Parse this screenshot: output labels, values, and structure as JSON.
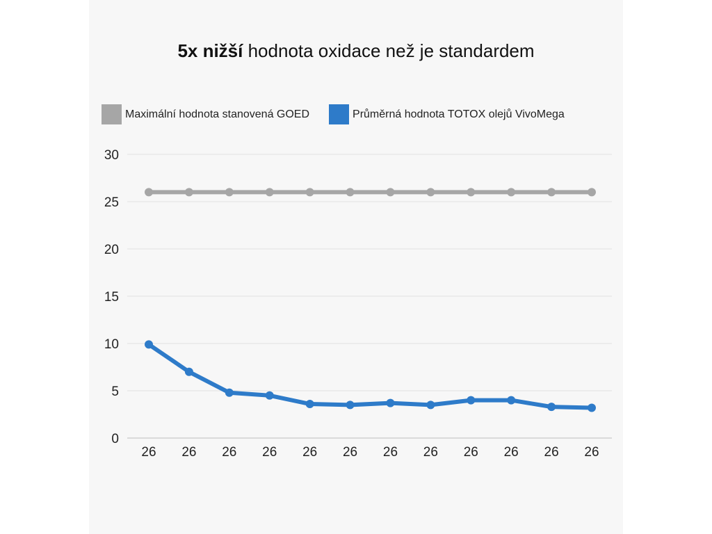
{
  "title": {
    "bold": "5x nižší",
    "rest": " hodnota oxidace než je standardem"
  },
  "chart_data": {
    "type": "line",
    "title": "5x nižší hodnota oxidace než je standardem",
    "categories": [
      "26",
      "26",
      "26",
      "26",
      "26",
      "26",
      "26",
      "26",
      "26",
      "26",
      "26",
      "26"
    ],
    "ylim": [
      0,
      30
    ],
    "yticks": [
      "0",
      "5",
      "10",
      "15",
      "20",
      "25",
      "30"
    ],
    "grid": true,
    "legend_position": "top",
    "series": [
      {
        "name": "Maximální hodnota stanovená GOED",
        "color": "#a6a6a6",
        "values": [
          26,
          26,
          26,
          26,
          26,
          26,
          26,
          26,
          26,
          26,
          26,
          26
        ]
      },
      {
        "name": "Průměrná hodnota TOTOX olejů VivoMega",
        "color": "#2e7bc9",
        "values": [
          9.9,
          7.0,
          4.8,
          4.5,
          3.6,
          3.5,
          3.7,
          3.5,
          4.0,
          4.0,
          3.3,
          3.2
        ]
      }
    ]
  }
}
